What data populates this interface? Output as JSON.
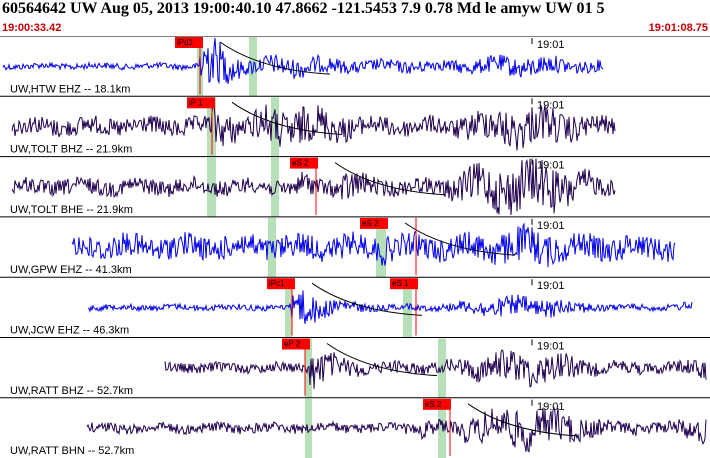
{
  "header": {
    "title": "60564642 UW Aug 05, 2013 19:00:40.10    47.8662 -121.5453  7.9 0.78 Md le amyw UW 01    5",
    "time_start": "19:00:33.42",
    "time_end": "19:01:08.75"
  },
  "colors": {
    "blue_trace": "#0000ee",
    "purple_trace": "#200050",
    "pick_box": "#ff0000",
    "highlight": "#b8e0b8",
    "time_text": "#c00000"
  },
  "traces": [
    {
      "label": "UW,HTW EHZ -- 18.1km",
      "minute_label": "19:01",
      "color": "blue_trace",
      "picks": [
        {
          "label": "iPd1",
          "kind": "P"
        }
      ]
    },
    {
      "label": "UW,TOLT BHZ -- 21.9km",
      "minute_label": "19:01",
      "color": "purple_trace",
      "picks": [
        {
          "label": "iP 1",
          "kind": "P"
        }
      ]
    },
    {
      "label": "UW,TOLT BHE -- 21.9km",
      "minute_label": "19:01",
      "color": "purple_trace",
      "picks": [
        {
          "label": "eS 2",
          "kind": "S"
        }
      ]
    },
    {
      "label": "UW,GPW EHZ -- 41.3km",
      "minute_label": "19:01",
      "color": "blue_trace",
      "picks": [
        {
          "label": "eS 2",
          "kind": "S"
        }
      ]
    },
    {
      "label": "UW,JCW EHZ -- 46.3km",
      "minute_label": "19:01",
      "color": "blue_trace",
      "picks": [
        {
          "label": "iPc1",
          "kind": "P"
        },
        {
          "label": "eS 1",
          "kind": "S"
        }
      ]
    },
    {
      "label": "UW,RATT BHZ -- 52.7km",
      "minute_label": "19:01",
      "color": "purple_trace",
      "picks": [
        {
          "label": "eP 2",
          "kind": "P"
        }
      ]
    },
    {
      "label": "UW,RATT BHN -- 52.7km",
      "minute_label": "19:01",
      "color": "purple_trace",
      "picks": [
        {
          "label": "eS 2",
          "kind": "S"
        }
      ]
    }
  ]
}
